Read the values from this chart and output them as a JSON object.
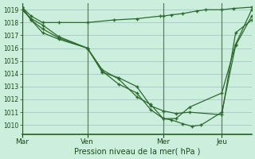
{
  "bg_color": "#cceedd",
  "line_color": "#2d6a2d",
  "grid_color": "#aacccc",
  "xlabel": "Pression niveau de la mer( hPa )",
  "ylim": [
    1009.3,
    1019.5
  ],
  "yticks": [
    1010,
    1011,
    1012,
    1013,
    1014,
    1015,
    1016,
    1017,
    1018,
    1019
  ],
  "xtick_labels": [
    "Mar",
    "Ven",
    "Mer",
    "Jeu"
  ],
  "xtick_positions": [
    0.0,
    0.285,
    0.615,
    0.87
  ],
  "series": [
    {
      "x": [
        0.0,
        0.04,
        0.09,
        0.16,
        0.285,
        0.4,
        0.5,
        0.6,
        0.615,
        0.65,
        0.7,
        0.76,
        0.8,
        0.87,
        0.92,
        1.0
      ],
      "y": [
        1019.2,
        1018.5,
        1018.0,
        1018.0,
        1018.0,
        1018.2,
        1018.3,
        1018.5,
        1018.5,
        1018.6,
        1018.7,
        1018.9,
        1019.0,
        1019.0,
        1019.1,
        1019.2
      ]
    },
    {
      "x": [
        0.0,
        0.04,
        0.09,
        0.16,
        0.285,
        0.35,
        0.42,
        0.5,
        0.56,
        0.615,
        0.67,
        0.73,
        0.87,
        0.93,
        1.0
      ],
      "y": [
        1019.0,
        1018.3,
        1017.8,
        1016.9,
        1016.0,
        1014.1,
        1013.7,
        1013.0,
        1011.5,
        1011.1,
        1010.9,
        1011.0,
        1010.8,
        1017.2,
        1018.2
      ]
    },
    {
      "x": [
        0.0,
        0.04,
        0.09,
        0.16,
        0.285,
        0.35,
        0.42,
        0.5,
        0.56,
        0.615,
        0.67,
        0.73,
        0.87,
        0.93,
        1.0
      ],
      "y": [
        1019.1,
        1018.2,
        1017.5,
        1016.8,
        1016.0,
        1014.3,
        1013.6,
        1012.2,
        1011.6,
        1010.5,
        1010.5,
        1011.4,
        1012.5,
        1016.3,
        1019.0
      ]
    },
    {
      "x": [
        0.0,
        0.04,
        0.09,
        0.16,
        0.285,
        0.35,
        0.42,
        0.5,
        0.56,
        0.615,
        0.65,
        0.7,
        0.74,
        0.78,
        0.87,
        0.93,
        1.0
      ],
      "y": [
        1019.2,
        1018.2,
        1017.2,
        1016.7,
        1016.0,
        1014.2,
        1013.2,
        1012.5,
        1011.2,
        1010.5,
        1010.4,
        1010.1,
        1009.9,
        1010.0,
        1011.0,
        1016.2,
        1018.5
      ]
    }
  ]
}
